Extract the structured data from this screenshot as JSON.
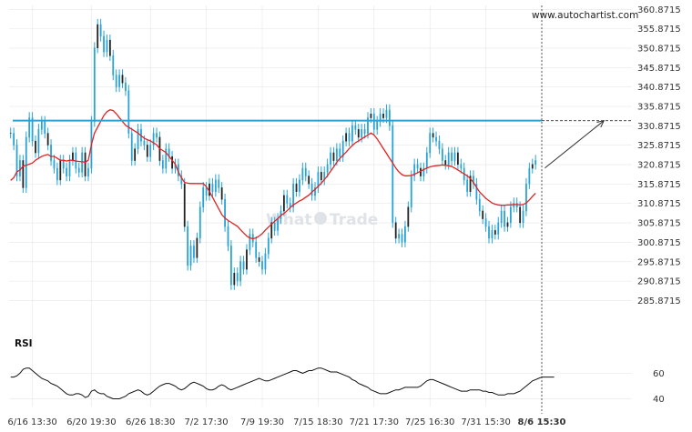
{
  "window": {
    "watermark_url": "www.autochartist.com",
    "logo_text_left": "What",
    "logo_text_right": "Trade"
  },
  "colors": {
    "candle": "#29a3d6",
    "ma": "#e52222",
    "resistance": "#29a3d6",
    "rsi": "#111111",
    "grid": "#e6e6e6"
  },
  "chart_data": [
    {
      "type": "line",
      "title": "",
      "ylim": [
        283.8715,
        361.8715
      ],
      "yticks": [
        "360.8715",
        "355.8715",
        "350.8715",
        "345.8715",
        "340.8715",
        "335.8715",
        "330.8715",
        "325.8715",
        "320.8715",
        "315.8715",
        "310.8715",
        "305.8715",
        "300.8715",
        "295.8715",
        "290.8715",
        "285.8715"
      ],
      "xticks": [
        "6/16 13:30",
        "6/20 19:30",
        "6/26 18:30",
        "7/2 17:30",
        "7/9 19:30",
        "7/15 18:30",
        "7/21 17:30",
        "7/25 16:30",
        "7/31 15:30",
        "8/6 15:30"
      ],
      "xtick_index": [
        7,
        26,
        45,
        63,
        81,
        99,
        117,
        135,
        153,
        171
      ],
      "resistance_level": 332.2,
      "projection": {
        "from": [
          172,
          320.0
        ],
        "to": [
          191,
          332.2
        ]
      },
      "marker_index": 171,
      "n_bars": 180,
      "closes": [
        329.0,
        326.0,
        318.0,
        322.0,
        315.0,
        328.0,
        333.0,
        327.0,
        324.0,
        330.0,
        332.0,
        329.0,
        326.0,
        322.0,
        320.0,
        317.0,
        322.0,
        320.0,
        318.0,
        322.0,
        324.0,
        320.0,
        319.0,
        324.0,
        318.0,
        320.0,
        332.0,
        351.0,
        357.0,
        354.0,
        350.0,
        353.0,
        349.0,
        344.0,
        341.0,
        344.0,
        342.0,
        340.0,
        329.0,
        322.0,
        325.0,
        330.0,
        327.0,
        326.0,
        323.0,
        326.0,
        329.0,
        328.0,
        322.0,
        320.0,
        325.0,
        323.0,
        320.0,
        321.0,
        318.0,
        316.0,
        305.0,
        295.0,
        300.0,
        297.0,
        302.0,
        310.0,
        315.0,
        313.0,
        316.0,
        314.0,
        317.0,
        315.0,
        312.0,
        305.0,
        300.0,
        290.0,
        293.0,
        291.0,
        296.0,
        294.0,
        299.0,
        303.0,
        301.0,
        297.0,
        296.0,
        294.0,
        298.0,
        302.0,
        306.0,
        304.0,
        307.0,
        309.0,
        313.0,
        311.0,
        310.0,
        316.0,
        314.0,
        317.0,
        320.0,
        318.0,
        316.0,
        313.0,
        315.0,
        319.0,
        317.0,
        319.0,
        321.0,
        324.0,
        322.0,
        325.0,
        323.0,
        327.0,
        329.0,
        327.0,
        331.0,
        330.0,
        328.0,
        330.0,
        329.0,
        333.0,
        334.0,
        330.0,
        332.0,
        334.0,
        333.0,
        335.0,
        331.0,
        306.0,
        302.0,
        303.0,
        301.0,
        305.0,
        310.0,
        318.0,
        321.0,
        320.0,
        318.0,
        320.0,
        324.0,
        329.0,
        328.0,
        327.0,
        325.0,
        322.0,
        321.0,
        324.0,
        322.0,
        324.0,
        321.0,
        320.0,
        317.0,
        314.0,
        318.0,
        316.0,
        312.0,
        309.0,
        307.0,
        305.0,
        302.0,
        304.0,
        303.0,
        306.0,
        309.0,
        305.0,
        306.0,
        310.0,
        311.0,
        310.0,
        306.0,
        309.0,
        316.0,
        320.0,
        321.0,
        322.0
      ],
      "ma": [
        316.8,
        317.5,
        319.0,
        319.5,
        320.5,
        320.7,
        321.0,
        321.3,
        322.0,
        322.5,
        323.0,
        323.3,
        323.5,
        323.0,
        323.0,
        322.5,
        322.0,
        322.0,
        321.8,
        322.0,
        322.0,
        321.8,
        321.7,
        321.6,
        321.5,
        322.0,
        326.0,
        329.0,
        330.5,
        332.0,
        333.5,
        334.5,
        335.0,
        334.8,
        334.0,
        333.0,
        332.0,
        331.0,
        330.5,
        330.0,
        329.5,
        329.0,
        328.3,
        327.7,
        327.3,
        327.0,
        326.5,
        326.0,
        325.0,
        324.5,
        324.0,
        323.0,
        322.0,
        321.0,
        319.0,
        317.5,
        316.3,
        316.1,
        316.0,
        316.0,
        316.0,
        316.0,
        316.0,
        315.2,
        314.0,
        312.5,
        311.0,
        309.5,
        308.0,
        307.1,
        306.5,
        306.0,
        305.5,
        305.0,
        304.1,
        303.3,
        302.5,
        302.0,
        301.8,
        302.0,
        302.5,
        303.1,
        304.0,
        304.8,
        305.5,
        306.3,
        307.0,
        307.8,
        308.3,
        309.0,
        309.8,
        310.5,
        311.0,
        311.5,
        311.9,
        312.5,
        313.0,
        313.8,
        314.5,
        315.3,
        316.1,
        317.0,
        318.0,
        319.2,
        320.3,
        321.5,
        322.5,
        323.3,
        324.1,
        325.0,
        325.8,
        326.5,
        327.0,
        327.5,
        328.0,
        328.5,
        329.0,
        328.5,
        327.5,
        326.3,
        325.0,
        323.8,
        322.5,
        321.3,
        320.0,
        319.0,
        318.3,
        318.0,
        318.0,
        318.1,
        318.4,
        318.8,
        319.2,
        319.6,
        320.0,
        320.3,
        320.5,
        320.6,
        320.7,
        320.8,
        320.7,
        320.6,
        320.4,
        320.0,
        319.5,
        319.0,
        318.5,
        318.0,
        317.3,
        316.3,
        315.0,
        313.8,
        313.0,
        312.2,
        311.6,
        311.0,
        310.7,
        310.5,
        310.4,
        310.4,
        310.5,
        310.5,
        310.6,
        310.6,
        310.5,
        310.6,
        311.0,
        311.8,
        312.7,
        313.5
      ]
    },
    {
      "type": "line",
      "title": "RSI",
      "ylim": [
        34,
        78
      ],
      "yticks": [
        "60",
        "40"
      ],
      "rsi": [
        57,
        57,
        58,
        60,
        63,
        64,
        64,
        62,
        60,
        58,
        56,
        55,
        54,
        52,
        51,
        50,
        48,
        46,
        44,
        43,
        43,
        44,
        44,
        43,
        41,
        42,
        46,
        47,
        45,
        44,
        44,
        42,
        41,
        40,
        40,
        40,
        41,
        42,
        44,
        45,
        46,
        47,
        46,
        44,
        43,
        44,
        46,
        48,
        50,
        51,
        52,
        52,
        51,
        50,
        48,
        47,
        48,
        50,
        52,
        53,
        52,
        51,
        50,
        48,
        47,
        47,
        48,
        50,
        51,
        50,
        48,
        47,
        48,
        49,
        50,
        51,
        52,
        53,
        54,
        55,
        56,
        55,
        54,
        54,
        55,
        56,
        57,
        58,
        59,
        60,
        61,
        62,
        62,
        61,
        60,
        61,
        62,
        62,
        63,
        64,
        64,
        63,
        62,
        61,
        61,
        61,
        60,
        59,
        58,
        57,
        55,
        54,
        52,
        51,
        50,
        49,
        47,
        46,
        45,
        44,
        44,
        44,
        45,
        46,
        47,
        47,
        48,
        49,
        49,
        49,
        49,
        49,
        50,
        52,
        54,
        55,
        55,
        54,
        53,
        52,
        51,
        50,
        49,
        48,
        47,
        46,
        46,
        46,
        47,
        47,
        47,
        47,
        46,
        46,
        45,
        45,
        44,
        43,
        43,
        43,
        44,
        44,
        44,
        45,
        46,
        48,
        50,
        52,
        54,
        55,
        56,
        57,
        57,
        57,
        57,
        57
      ]
    }
  ]
}
